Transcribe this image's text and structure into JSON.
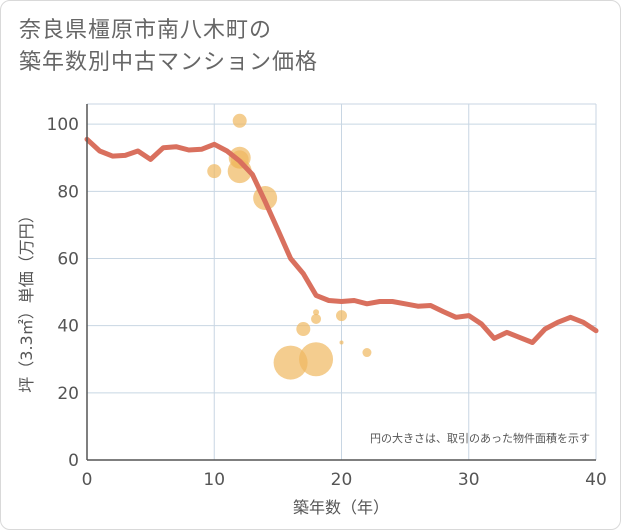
{
  "title_lines": [
    "奈良県橿原市南八木町の",
    "築年数別中古マンション価格"
  ],
  "chart_data": {
    "type": "line+scatter",
    "xlabel": "築年数（年）",
    "ylabel": "坪（3.3㎡）単価（万円）",
    "xlim": [
      0,
      40
    ],
    "ylim": [
      0,
      106
    ],
    "xticks": [
      0,
      10,
      20,
      30,
      40
    ],
    "yticks": [
      0,
      20,
      40,
      60,
      80,
      100
    ],
    "grid": true,
    "note": "円の大きさは、取引のあった物件面積を示す",
    "colors": {
      "line": "#d9705e",
      "bubble": "#f0b860",
      "grid": "#c8d6e3",
      "axis": "#555555"
    },
    "line": {
      "x": [
        0,
        1,
        2,
        3,
        4,
        5,
        6,
        7,
        8,
        9,
        10,
        11,
        12,
        13,
        14,
        15,
        16,
        17,
        18,
        19,
        20,
        21,
        22,
        23,
        24,
        25,
        26,
        27,
        28,
        29,
        30,
        31,
        32,
        33,
        34,
        35,
        36,
        37,
        38,
        39,
        40
      ],
      "y": [
        95.5,
        92,
        90.5,
        90.7,
        92,
        89.5,
        93,
        93.3,
        92.3,
        92.5,
        94,
        92,
        89,
        85,
        77,
        68.5,
        60,
        55.5,
        49,
        47.5,
        47.2,
        47.5,
        46.5,
        47.2,
        47.2,
        46.5,
        45.8,
        46,
        44.2,
        42.5,
        43,
        40.5,
        36.2,
        38,
        36.5,
        35,
        39,
        41,
        42.5,
        41,
        38.5
      ]
    },
    "bubbles": [
      {
        "x": 10,
        "y": 86,
        "size": 7
      },
      {
        "x": 12,
        "y": 101,
        "size": 7
      },
      {
        "x": 12,
        "y": 90,
        "size": 11
      },
      {
        "x": 12,
        "y": 89.5,
        "size": 9
      },
      {
        "x": 12,
        "y": 86,
        "size": 12
      },
      {
        "x": 14,
        "y": 78,
        "size": 12
      },
      {
        "x": 16,
        "y": 29,
        "size": 17
      },
      {
        "x": 17,
        "y": 39,
        "size": 7
      },
      {
        "x": 18,
        "y": 30,
        "size": 17
      },
      {
        "x": 18,
        "y": 44,
        "size": 3
      },
      {
        "x": 18,
        "y": 42,
        "size": 5
      },
      {
        "x": 20,
        "y": 43,
        "size": 5.5
      },
      {
        "x": 20,
        "y": 35,
        "size": 2
      },
      {
        "x": 22,
        "y": 32,
        "size": 4.5
      }
    ]
  }
}
